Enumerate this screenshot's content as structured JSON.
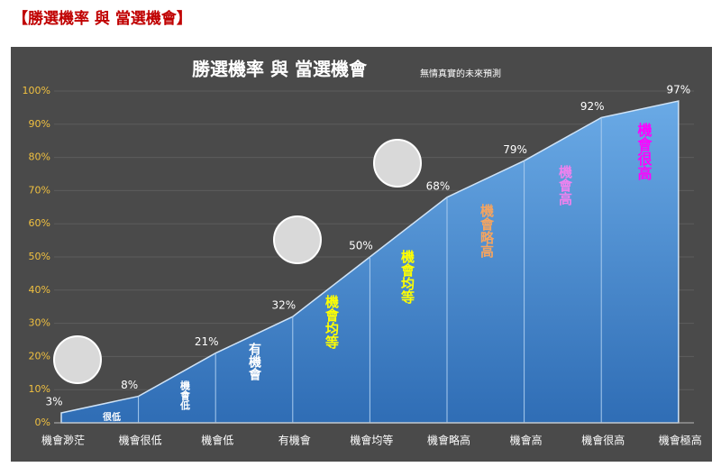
{
  "header": "【勝選機率 與 當選機會】",
  "chart_data": {
    "type": "area",
    "title": "勝選機率 與 當選機會",
    "subtitle": "無情真實的未來預測",
    "categories": [
      "機會渺茫",
      "機會很低",
      "機會低",
      "有機會",
      "機會均等",
      "機會略高",
      "機會高",
      "機會很高",
      "機會極高"
    ],
    "values": [
      3,
      8,
      21,
      32,
      50,
      68,
      79,
      92,
      97
    ],
    "value_labels": [
      "3%",
      "8%",
      "21%",
      "32%",
      "50%",
      "68%",
      "79%",
      "92%",
      "97%"
    ],
    "color": "#5b9bd5",
    "ylim": [
      0,
      100
    ],
    "yticks": [
      {
        "value": 0,
        "label": "0%"
      },
      {
        "value": 10,
        "label": "10%"
      },
      {
        "value": 20,
        "label": "20%"
      },
      {
        "value": 30,
        "label": "30%"
      },
      {
        "value": 40,
        "label": "40%"
      },
      {
        "value": 50,
        "label": "50%"
      },
      {
        "value": 60,
        "label": "60%"
      },
      {
        "value": 70,
        "label": "70%"
      },
      {
        "value": 80,
        "label": "80%"
      },
      {
        "value": 90,
        "label": "90%"
      },
      {
        "value": 100,
        "label": "100%"
      }
    ],
    "grid": true,
    "annotations": [
      {
        "text": "很低",
        "color": "#ffffff"
      },
      {
        "text": "機會低",
        "color": "#ffffff"
      },
      {
        "text": "有機會",
        "color": "#ffffff"
      },
      {
        "text": "機會均等",
        "color": "#ffff00"
      },
      {
        "text": "機會均等",
        "color": "#ffff00"
      },
      {
        "text": "機會略高",
        "color": "#f4a460"
      },
      {
        "text": "機會高",
        "color": "#ee82ee"
      },
      {
        "text": "機會很高",
        "color": "#ff00ff"
      }
    ]
  }
}
